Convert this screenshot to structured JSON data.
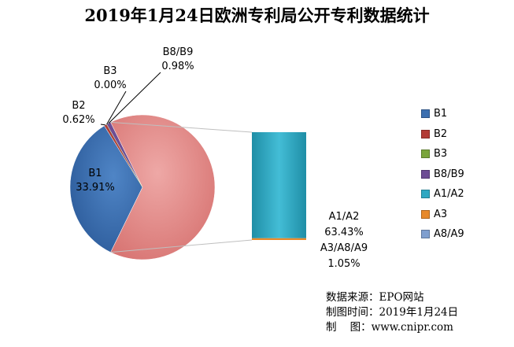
{
  "title": "2019年1月24日欧洲专利局公开专利数据统计",
  "chart_data": {
    "type": "pie",
    "subtype": "bar-of-pie",
    "title": "2019年1月24日欧洲专利局公开专利数据统计",
    "slices": [
      {
        "name": "B1",
        "value": 33.91,
        "label": "33.91%",
        "color": "#3c6fb0"
      },
      {
        "name": "B2",
        "value": 0.62,
        "label": "0.62%",
        "color": "#b23b35"
      },
      {
        "name": "B3",
        "value": 0.0,
        "label": "0.00%",
        "color": "#7aa53b"
      },
      {
        "name": "B8/B9",
        "value": 0.98,
        "label": "0.98%",
        "color": "#6d4d94"
      },
      {
        "name": "A1/A2 + A3/A8/A9",
        "value": 64.48,
        "label": "",
        "color": "#e48e8c"
      }
    ],
    "bar": [
      {
        "name": "A1/A2",
        "value": 63.43,
        "label": "63.43%",
        "color": "#2fa8c2"
      },
      {
        "name": "A3/A8/A9",
        "value": 1.05,
        "label": "1.05%",
        "color": "#e7892a"
      }
    ],
    "legend": {
      "position": "right",
      "items": [
        {
          "name": "B1",
          "color": "#3c6fb0"
        },
        {
          "name": "B2",
          "color": "#b23b35"
        },
        {
          "name": "B3",
          "color": "#7aa53b"
        },
        {
          "name": "B8/B9",
          "color": "#6d4d94"
        },
        {
          "name": "A1/A2",
          "color": "#2fa8c2"
        },
        {
          "name": "A3",
          "color": "#e7892a"
        },
        {
          "name": "A8/A9",
          "color": "#7f9fcf"
        }
      ]
    }
  },
  "source": {
    "line1": "数据来源：EPO网站",
    "line2": "制图时间：2019年1月24日",
    "line3": "制    图：www.cnipr.com"
  }
}
